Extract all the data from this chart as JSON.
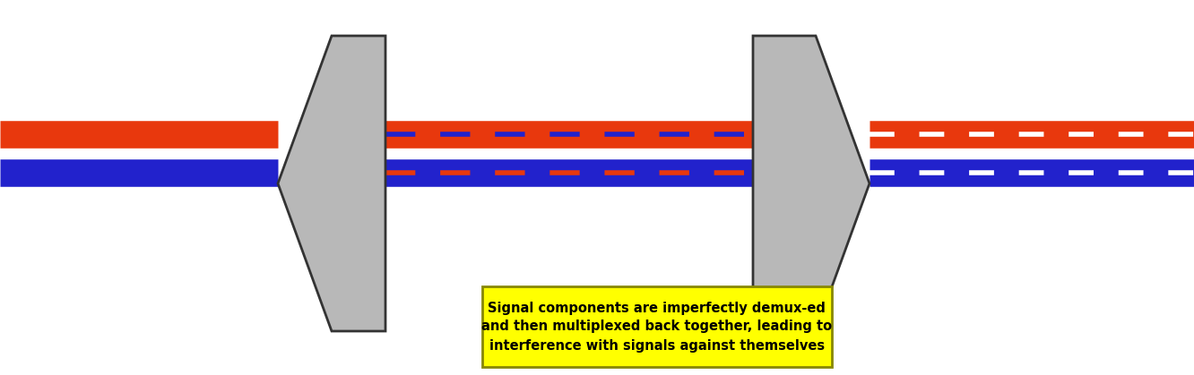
{
  "bg_color": "#ffffff",
  "cable_red": "#e8380d",
  "cable_blue": "#2222cc",
  "prism_fill": "#b8b8b8",
  "prism_edge": "#333333",
  "annotation_bg": "#ffff00",
  "annotation_border": "#888800",
  "annotation_text": "Signal components are imperfectly demux-ed\nand then multiplexed back together, leading to\ninterference with signals against themselves",
  "annotation_fontsize": 10.5,
  "fig_width": 13.32,
  "fig_height": 4.19,
  "dpi": 100,
  "cable_linewidth": 22,
  "dash_linewidth": 4
}
